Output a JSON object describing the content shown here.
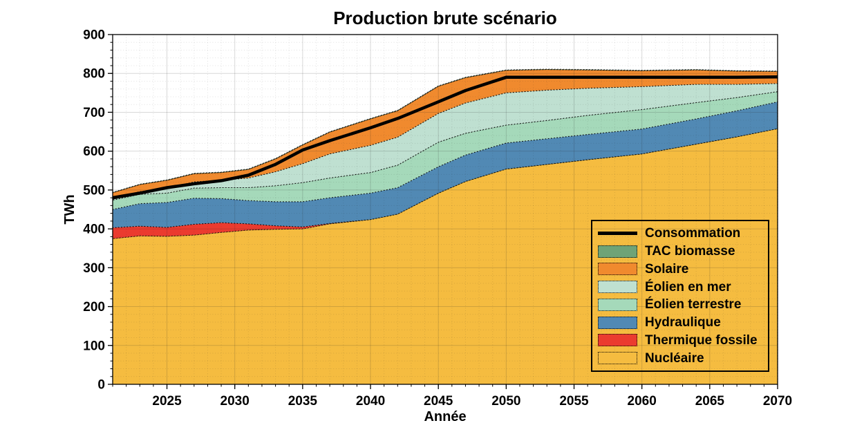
{
  "chart": {
    "title": "Production brute scénario",
    "xlabel": "Année",
    "ylabel": "TWh"
  },
  "chart_data": {
    "type": "area",
    "stacked": true,
    "title": "Production brute scénario",
    "xlabel": "Année",
    "ylabel": "TWh",
    "xlim": [
      2021,
      2070
    ],
    "ylim": [
      0,
      900
    ],
    "xticks": [
      2025,
      2030,
      2035,
      2040,
      2045,
      2050,
      2055,
      2060,
      2065,
      2070
    ],
    "yticks": [
      0,
      100,
      200,
      300,
      400,
      500,
      600,
      700,
      800,
      900
    ],
    "grid": "major solid + fine dotted minor grid, drawn above areas",
    "x": [
      2021,
      2023,
      2025,
      2027,
      2029,
      2031,
      2033,
      2035,
      2037,
      2040,
      2042,
      2045,
      2047,
      2050,
      2053,
      2056,
      2060,
      2064,
      2067,
      2070
    ],
    "series": [
      {
        "id": "nucleaire",
        "name": "Nucléaire",
        "color": "#F5BC40",
        "values": [
          375,
          382,
          381,
          384,
          391,
          397,
          399,
          400,
          413,
          424,
          438,
          492,
          522,
          554,
          566,
          578,
          593,
          618,
          637,
          658
        ]
      },
      {
        "id": "thermique-fossile",
        "name": "Thermique fossile",
        "color": "#EB3B2F",
        "values": [
          28,
          25,
          23,
          28,
          25,
          16,
          9,
          5,
          1,
          0,
          0,
          0,
          0,
          0,
          0,
          0,
          0,
          0,
          0,
          0
        ]
      },
      {
        "id": "hydraulique",
        "name": "Hydraulique",
        "color": "#5189B4",
        "values": [
          47,
          58,
          64,
          67,
          62,
          60,
          62,
          65,
          66,
          68,
          68,
          68,
          68,
          67,
          66,
          65,
          64,
          65,
          67,
          69
        ]
      },
      {
        "id": "eolien-terrestre",
        "name": "Éolien terrestre",
        "color": "#A5D9BA",
        "values": [
          24,
          24,
          24,
          26,
          28,
          33,
          41,
          49,
          51,
          53,
          58,
          63,
          56,
          46,
          47,
          49,
          50,
          42,
          34,
          26
        ]
      },
      {
        "id": "eolien-en-mer",
        "name": "Éolien en mer",
        "color": "#BFE0D1",
        "values": [
          2,
          7,
          12,
          16,
          19,
          25,
          36,
          49,
          62,
          70,
          72,
          74,
          78,
          83,
          78,
          70,
          59,
          47,
          34,
          21
        ]
      },
      {
        "id": "solaire",
        "name": "Solaire",
        "color": "#F08A2E",
        "values": [
          17,
          18,
          21,
          21,
          20,
          22,
          33,
          48,
          56,
          68,
          68,
          70,
          65,
          58,
          53,
          47,
          41,
          37,
          34,
          31
        ]
      },
      {
        "id": "tac-biomasse",
        "name": "TAC biomasse",
        "color": "#6FA377",
        "values": [
          1,
          1,
          1,
          1,
          1,
          1,
          1,
          1,
          1,
          1,
          1,
          1,
          1,
          1,
          1,
          1,
          1,
          1,
          1,
          1
        ]
      }
    ],
    "line_series": {
      "id": "consommation",
      "name": "Consommation",
      "color": "#000000",
      "values": [
        480,
        492,
        506,
        516,
        524,
        538,
        566,
        603,
        627,
        660,
        684,
        727,
        756,
        790,
        790,
        790,
        790,
        790,
        790,
        791
      ]
    },
    "legend": {
      "position": "right-middle, transparent background, black border",
      "entries": [
        {
          "label": "Consommation",
          "swatch": "line",
          "color": "#000000"
        },
        {
          "label": "TAC biomasse",
          "swatch": "patch",
          "color": "#6FA377"
        },
        {
          "label": "Solaire",
          "swatch": "patch",
          "color": "#F08A2E"
        },
        {
          "label": "Éolien en mer",
          "swatch": "patch",
          "color": "#BFE0D1"
        },
        {
          "label": "Éolien terrestre",
          "swatch": "patch",
          "color": "#A5D9BA"
        },
        {
          "label": "Hydraulique",
          "swatch": "patch",
          "color": "#5189B4"
        },
        {
          "label": "Thermique fossile",
          "swatch": "patch",
          "color": "#EB3B2F"
        },
        {
          "label": "Nucléaire",
          "swatch": "patch",
          "color": "#F5BC40"
        }
      ]
    }
  }
}
